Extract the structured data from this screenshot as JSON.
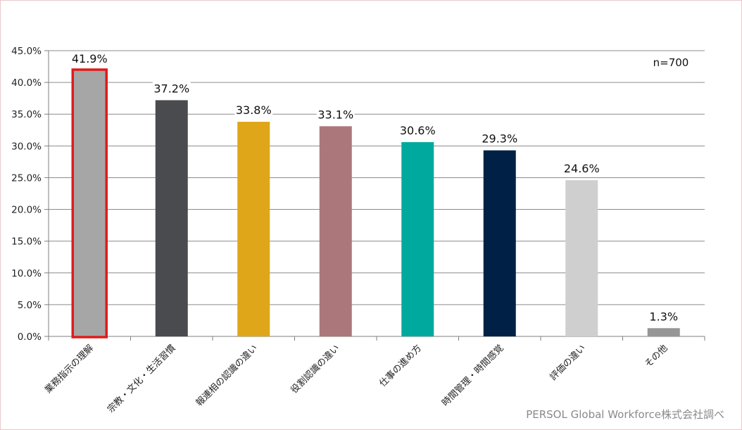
{
  "chart_data": {
    "type": "bar",
    "categories": [
      "業務指示の理解",
      "宗教・文化・生活習慣",
      "報連相の認識の違い",
      "役割認識の違い",
      "仕事の進め方",
      "時間管理・時間感覚",
      "評価の違い",
      "その他"
    ],
    "values": [
      41.9,
      37.2,
      33.8,
      33.1,
      30.6,
      29.3,
      24.6,
      1.3
    ],
    "value_labels": [
      "41.9%",
      "37.2%",
      "33.8%",
      "33.1%",
      "30.6%",
      "29.3%",
      "24.6%",
      "1.3%"
    ],
    "bar_colors": [
      "#a6a6a6",
      "#4a4b4f",
      "#e0a619",
      "#ac777b",
      "#00a99d",
      "#002145",
      "#cfcfcf",
      "#969696"
    ],
    "highlight": {
      "index": 0,
      "color": "#e01b1b"
    },
    "ylim": [
      0,
      45
    ],
    "yticks": [
      "0.0%",
      "5.0%",
      "10.0%",
      "15.0%",
      "20.0%",
      "25.0%",
      "30.0%",
      "35.0%",
      "40.0%",
      "45.0%"
    ],
    "grid": true,
    "legend": "none",
    "annotation": "n=700",
    "source": "PERSOL Global Workforce株式会社調べ",
    "xlabel": "",
    "ylabel": ""
  }
}
